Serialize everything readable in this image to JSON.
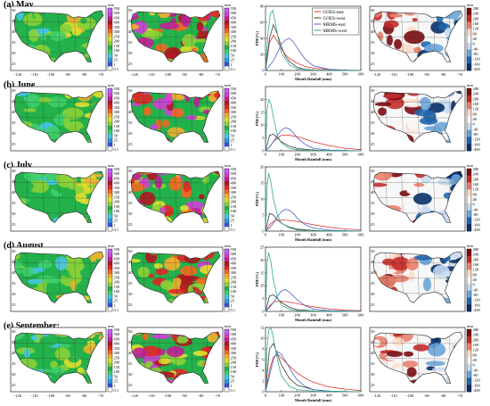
{
  "colors": {
    "goes_east": "#e03a2c",
    "goes_west": "#3a3a3a",
    "mrms_east": "#4a5fd0",
    "mrms_west": "#2fae86",
    "totals_scale": [
      "#ffffff",
      "#3a4fd8",
      "#2e9be0",
      "#45c7e6",
      "#3fcf6a",
      "#23b14b",
      "#8ad238",
      "#e0e030",
      "#f0b030",
      "#f06a20",
      "#e02828",
      "#b01820",
      "#c0209a",
      "#d040d8",
      "#c060ff"
    ],
    "diff_scale": [
      "#08306b",
      "#2166ac",
      "#6aa5d8",
      "#c6dbef",
      "#f7f7f7",
      "#fddbc7",
      "#e8806a",
      "#c42b2b",
      "#7a0a12"
    ]
  },
  "rows": [
    {
      "label": "(a) May"
    },
    {
      "label": "(b) June"
    },
    {
      "label": "(c) July"
    },
    {
      "label": "(d) August"
    },
    {
      "label": "(e) September:"
    }
  ],
  "map_axes": {
    "x_ticks": [
      "-120",
      "-110",
      "-100",
      "-90",
      "-80",
      "-70"
    ],
    "y_ticks": [
      "50",
      "45",
      "40",
      "35",
      "30",
      "25"
    ]
  },
  "totals_colorbar": {
    "unit": "mm",
    "ticks": [
      "550",
      "500",
      "450",
      "400",
      "350",
      "300",
      "250",
      "200",
      "150",
      "100",
      "50",
      "25",
      "1",
      "0.1"
    ]
  },
  "diff_colorbar": {
    "unit": "mm",
    "ticks": [
      "280",
      "240",
      "200",
      "160",
      "120",
      "80",
      "40",
      "0",
      "-40",
      "-80",
      "-120",
      "-160",
      "-200"
    ]
  },
  "chart_data": {
    "type": "line",
    "xlabel": "Month Rainfall (mm)",
    "ylabel": "PDF(%)",
    "xlim": [
      0,
      600
    ],
    "x_ticks": [
      0,
      100,
      200,
      300,
      400,
      500,
      600
    ],
    "legend_position": "top-right",
    "series_names": [
      "GOES-east",
      "GOES-west",
      "MRMS-east",
      "MRMS-west"
    ],
    "panels": [
      {
        "month": "May",
        "ylim": [
          0,
          80
        ],
        "y_ticks": [
          0,
          20,
          40,
          60,
          80
        ],
        "series": [
          {
            "name": "GOES-east",
            "x": [
              0,
              25,
              50,
              75,
              100,
              125,
              150,
              200,
              250,
              300,
              400,
              500,
              600
            ],
            "y": [
              0,
              35,
              44,
              36,
              27,
              20,
              15,
              9,
              5,
              3,
              1.2,
              0.5,
              0.2
            ]
          },
          {
            "name": "GOES-west",
            "x": [
              0,
              25,
              50,
              75,
              100,
              125,
              150,
              200,
              250,
              300,
              400,
              500,
              600
            ],
            "y": [
              0,
              40,
              57,
              45,
              30,
              18,
              11,
              4,
              1.5,
              0.6,
              0.2,
              0.1,
              0
            ]
          },
          {
            "name": "MRMS-east",
            "x": [
              0,
              25,
              50,
              75,
              100,
              125,
              150,
              175,
              200,
              250,
              300,
              400,
              500,
              600
            ],
            "y": [
              0,
              6,
              12,
              22,
              33,
              38,
              40,
              36,
              28,
              14,
              6,
              1.5,
              0.3,
              0
            ]
          },
          {
            "name": "MRMS-west",
            "x": [
              0,
              15,
              30,
              45,
              60,
              80,
              100,
              150,
              200,
              300,
              600
            ],
            "y": [
              0,
              45,
              70,
              75,
              62,
              40,
              22,
              7,
              2,
              0.4,
              0
            ]
          }
        ]
      },
      {
        "month": "June",
        "ylim": [
          0,
          25
        ],
        "y_ticks": [
          0,
          5,
          10,
          15,
          20
        ],
        "series": [
          {
            "name": "GOES-east",
            "x": [
              0,
              25,
              50,
              75,
              100,
              150,
              200,
              250,
              300,
              400,
              500,
              600
            ],
            "y": [
              0,
              1.5,
              3.5,
              5,
              6,
              6,
              5.5,
              4.5,
              3.5,
              2,
              1,
              0.4
            ]
          },
          {
            "name": "GOES-west",
            "x": [
              0,
              25,
              50,
              75,
              100,
              150,
              200,
              300,
              400,
              600
            ],
            "y": [
              0,
              6,
              6.5,
              5,
              3.5,
              1.8,
              0.9,
              0.3,
              0.1,
              0
            ]
          },
          {
            "name": "MRMS-east",
            "x": [
              0,
              25,
              50,
              75,
              100,
              125,
              150,
              175,
              200,
              250,
              300,
              400,
              600
            ],
            "y": [
              0,
              1.5,
              3.5,
              6,
              8,
              9,
              8.5,
              7,
              5,
              2.5,
              1,
              0.3,
              0
            ]
          },
          {
            "name": "MRMS-west",
            "x": [
              0,
              10,
              20,
              35,
              50,
              75,
              100,
              150,
              200,
              300,
              600
            ],
            "y": [
              0,
              16,
              20,
              18,
              13,
              6,
              3,
              1,
              0.4,
              0.1,
              0
            ]
          }
        ]
      },
      {
        "month": "July",
        "ylim": [
          0,
          20
        ],
        "y_ticks": [
          0,
          5,
          10,
          15,
          20
        ],
        "series": [
          {
            "name": "GOES-east",
            "x": [
              0,
              25,
              50,
              75,
              100,
              150,
              200,
              250,
              300,
              400,
              500,
              600
            ],
            "y": [
              0,
              2,
              3,
              3.5,
              3.5,
              3.3,
              3,
              2.5,
              2,
              1.2,
              0.7,
              0.4
            ]
          },
          {
            "name": "GOES-west",
            "x": [
              0,
              25,
              50,
              75,
              100,
              150,
              200,
              300,
              400,
              600
            ],
            "y": [
              0,
              5.5,
              5,
              3.5,
              2.5,
              1.2,
              0.6,
              0.2,
              0.1,
              0
            ]
          },
          {
            "name": "MRMS-east",
            "x": [
              0,
              25,
              50,
              75,
              100,
              125,
              150,
              175,
              200,
              250,
              300,
              400,
              600
            ],
            "y": [
              0,
              1,
              2.5,
              4.5,
              6,
              6.8,
              6.5,
              5.5,
              4,
              2,
              1,
              0.3,
              0
            ]
          },
          {
            "name": "MRMS-west",
            "x": [
              0,
              10,
              20,
              35,
              50,
              75,
              100,
              150,
              200,
              300,
              600
            ],
            "y": [
              0,
              14,
              18,
              15,
              10,
              5,
              2.5,
              1,
              0.4,
              0.1,
              0
            ]
          }
        ]
      },
      {
        "month": "August",
        "ylim": [
          0,
          25
        ],
        "y_ticks": [
          0,
          5,
          10,
          15,
          20,
          25
        ],
        "series": [
          {
            "name": "GOES-east",
            "x": [
              0,
              25,
              50,
              75,
              100,
              150,
              200,
              250,
              300,
              400,
              500,
              600
            ],
            "y": [
              0,
              2,
              3.5,
              4,
              4,
              3.6,
              3,
              2.4,
              1.8,
              1,
              0.5,
              0.3
            ]
          },
          {
            "name": "GOES-west",
            "x": [
              0,
              25,
              50,
              75,
              100,
              150,
              200,
              300,
              400,
              600
            ],
            "y": [
              0,
              6,
              6.5,
              5,
              3.5,
              1.6,
              0.7,
              0.2,
              0.1,
              0
            ]
          },
          {
            "name": "MRMS-east",
            "x": [
              0,
              25,
              50,
              75,
              100,
              125,
              150,
              175,
              200,
              250,
              300,
              400,
              600
            ],
            "y": [
              0,
              1.5,
              3.5,
              6,
              8,
              8.5,
              7.5,
              6,
              4.5,
              2.2,
              1,
              0.3,
              0
            ]
          },
          {
            "name": "MRMS-west",
            "x": [
              0,
              10,
              20,
              35,
              50,
              75,
              100,
              150,
              200,
              300,
              600
            ],
            "y": [
              0,
              19,
              23,
              19,
              12,
              5.5,
              2.5,
              0.8,
              0.3,
              0.1,
              0
            ]
          }
        ]
      },
      {
        "month": "September",
        "ylim": [
          0,
          12
        ],
        "y_ticks": [
          0,
          2,
          4,
          6,
          8,
          10,
          12
        ],
        "series": [
          {
            "name": "GOES-east",
            "x": [
              0,
              25,
              50,
              75,
              100,
              150,
              200,
              250,
              300,
              400,
              500,
              600
            ],
            "y": [
              0,
              4,
              6.5,
              7,
              6.3,
              4.8,
              3.5,
              2.5,
              1.8,
              0.9,
              0.5,
              0.2
            ]
          },
          {
            "name": "GOES-west",
            "x": [
              0,
              25,
              50,
              75,
              100,
              150,
              200,
              300,
              400,
              600
            ],
            "y": [
              0,
              8,
              9,
              7,
              5,
              2.5,
              1.2,
              0.4,
              0.1,
              0
            ]
          },
          {
            "name": "MRMS-east",
            "x": [
              0,
              25,
              50,
              75,
              100,
              125,
              150,
              175,
              200,
              250,
              300,
              400,
              600
            ],
            "y": [
              0,
              3,
              6,
              7.5,
              7,
              5.8,
              4.5,
              3.2,
              2.2,
              1,
              0.4,
              0.1,
              0
            ]
          },
          {
            "name": "MRMS-west",
            "x": [
              0,
              10,
              20,
              35,
              50,
              75,
              100,
              150,
              200,
              300,
              600
            ],
            "y": [
              0,
              8,
              11.5,
              12,
              10,
              6,
              3,
              1,
              0.4,
              0.1,
              0
            ]
          }
        ]
      }
    ]
  }
}
